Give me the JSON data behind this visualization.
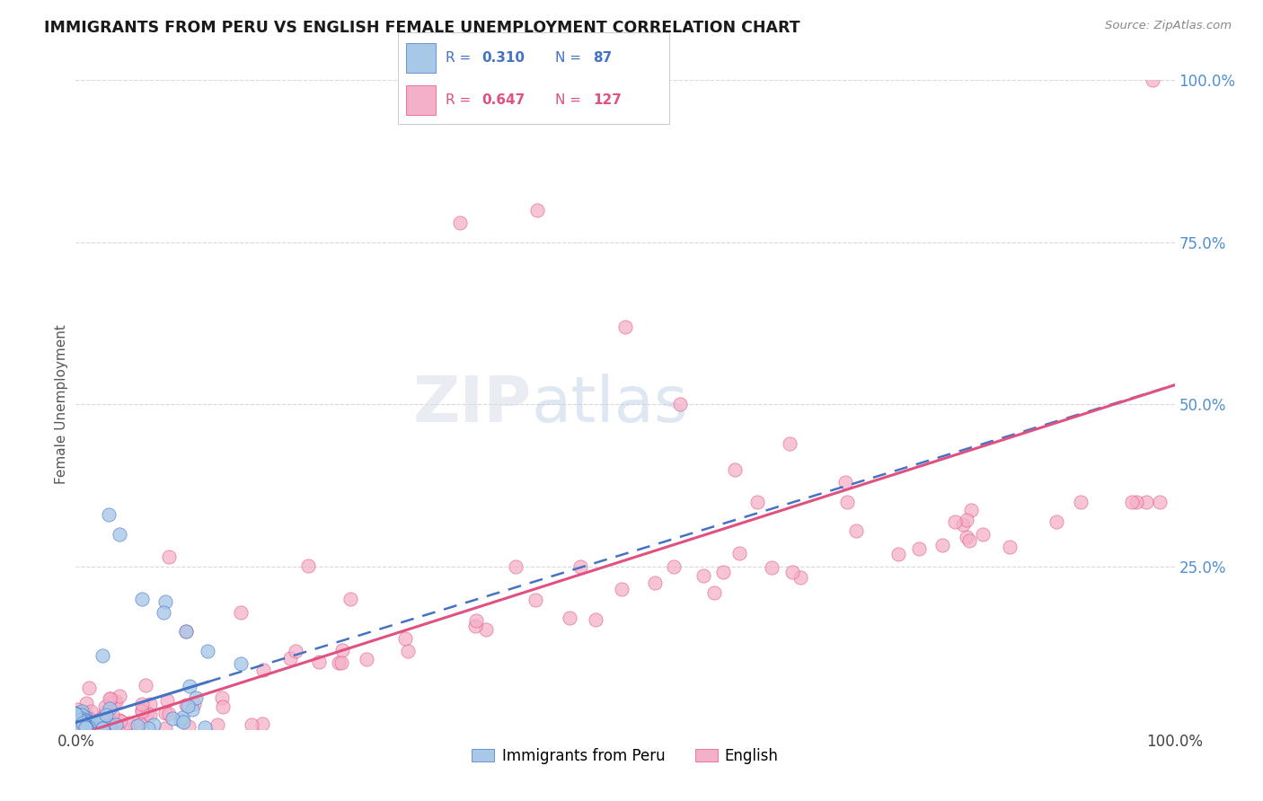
{
  "title": "IMMIGRANTS FROM PERU VS ENGLISH FEMALE UNEMPLOYMENT CORRELATION CHART",
  "source": "Source: ZipAtlas.com",
  "ylabel": "Female Unemployment",
  "watermark_zip": "ZIP",
  "watermark_atlas": "atlas",
  "background_color": "#ffffff",
  "grid_color": "#d8d8d8",
  "title_color": "#1a1a1a",
  "source_color": "#888888",
  "peru_color": "#a8c8e8",
  "peru_line_color": "#4472c4",
  "english_color": "#f4b0c8",
  "english_line_color": "#e05080",
  "peru_R": 0.31,
  "peru_N": 87,
  "english_R": 0.647,
  "english_N": 127,
  "right_tick_color": "#5090d0",
  "right_tick_labels": [
    "",
    "25.0%",
    "50.0%",
    "75.0%",
    "100.0%"
  ]
}
